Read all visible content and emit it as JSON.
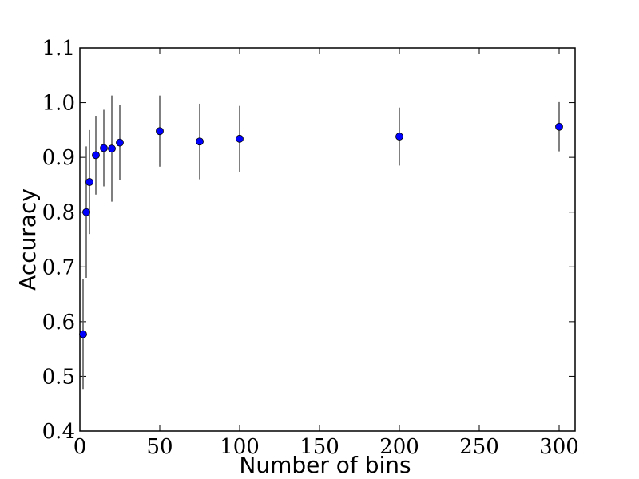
{
  "chart_data": {
    "type": "scatter",
    "title": "",
    "xlabel": "Number of bins",
    "ylabel": "Accuracy",
    "xlim": [
      0,
      310
    ],
    "ylim": [
      0.4,
      1.1
    ],
    "xticks": [
      0,
      50,
      100,
      150,
      200,
      250,
      300
    ],
    "yticks": [
      0.4,
      0.5,
      0.6,
      0.7,
      0.8,
      0.9,
      1.0,
      1.1
    ],
    "xtick_labels": [
      "0",
      "50",
      "100",
      "150",
      "200",
      "250",
      "300"
    ],
    "ytick_labels": [
      "0.4",
      "0.5",
      "0.6",
      "0.7",
      "0.8",
      "0.9",
      "1.0",
      "1.1"
    ],
    "grid": false,
    "legend": "none",
    "marker_color": "#0000ff",
    "errorbar_color": "#555555",
    "points": [
      {
        "x": 2,
        "y": 0.577,
        "err": 0.1
      },
      {
        "x": 4,
        "y": 0.8,
        "err": 0.12
      },
      {
        "x": 6,
        "y": 0.855,
        "err": 0.095
      },
      {
        "x": 10,
        "y": 0.904,
        "err": 0.072
      },
      {
        "x": 15,
        "y": 0.917,
        "err": 0.07
      },
      {
        "x": 20,
        "y": 0.916,
        "err": 0.097
      },
      {
        "x": 25,
        "y": 0.927,
        "err": 0.068
      },
      {
        "x": 50,
        "y": 0.948,
        "err": 0.065
      },
      {
        "x": 75,
        "y": 0.929,
        "err": 0.069
      },
      {
        "x": 100,
        "y": 0.934,
        "err": 0.06
      },
      {
        "x": 200,
        "y": 0.938,
        "err": 0.053
      },
      {
        "x": 300,
        "y": 0.956,
        "err": 0.045
      }
    ]
  }
}
